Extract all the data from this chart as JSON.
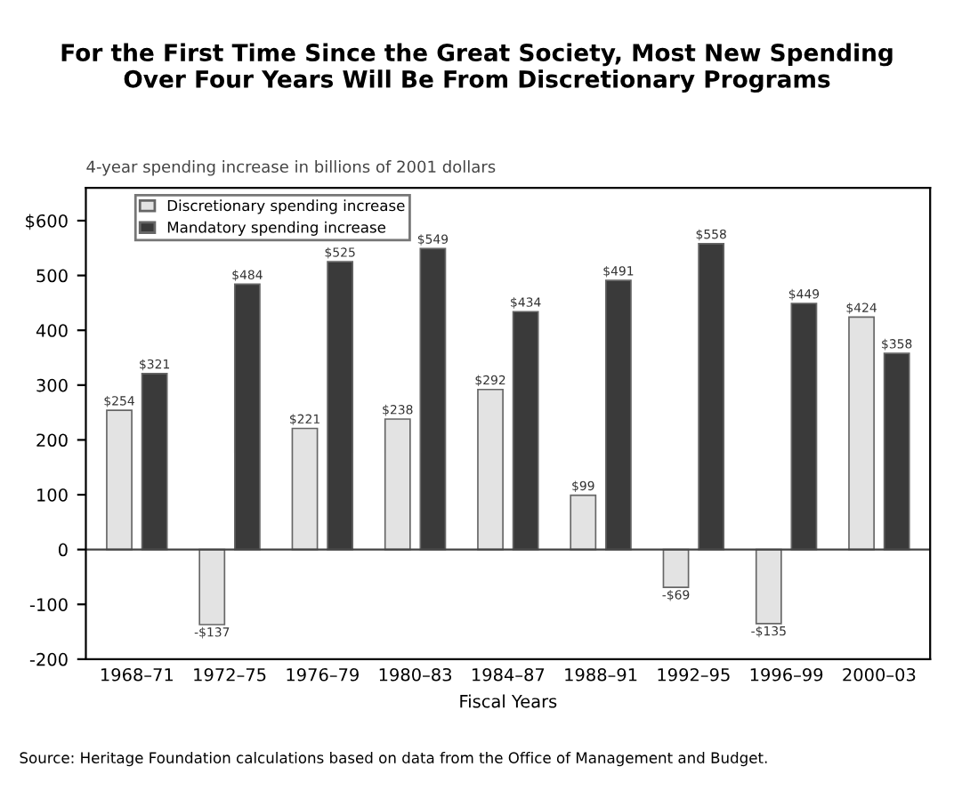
{
  "chart_data": {
    "type": "bar",
    "title": "For the First Time Since the Great Society, Most New Spending\nOver Four Years Will Be From Discretionary Programs",
    "subtitle": "4-year spending increase in billions of 2001 dollars",
    "xlabel": "Fiscal Years",
    "categories": [
      "1968–71",
      "1972–75",
      "1976–79",
      "1980–83",
      "1984–87",
      "1988–91",
      "1992–95",
      "1996–99",
      "2000–03"
    ],
    "series": [
      {
        "name": "Discretionary spending increase",
        "color": "#e3e3e3",
        "values": [
          254,
          -137,
          221,
          238,
          292,
          99,
          -69,
          -135,
          424
        ],
        "value_labels": [
          "$254",
          "-$137",
          "$221",
          "$238",
          "$292",
          "$99",
          "-$69",
          "-$135",
          "$424"
        ]
      },
      {
        "name": "Mandatory spending increase",
        "color": "#3a3a3a",
        "values": [
          321,
          484,
          525,
          549,
          434,
          491,
          558,
          449,
          358
        ],
        "value_labels": [
          "$321",
          "$484",
          "$525",
          "$549",
          "$434",
          "$491",
          "$558",
          "$449",
          "$358"
        ]
      }
    ],
    "ylim": [
      -200,
      660
    ],
    "yticks": [
      -200,
      -100,
      0,
      100,
      200,
      300,
      400,
      500,
      {
        "value": 600,
        "label": "$600"
      }
    ],
    "ref_lines": [
      {
        "axis": "y",
        "value": 0,
        "color": "#444444"
      }
    ],
    "grid": false,
    "legend": "top left",
    "annotations": [
      "Source: Heritage Foundation calculations based on data from the Office of Management and Budget."
    ]
  }
}
